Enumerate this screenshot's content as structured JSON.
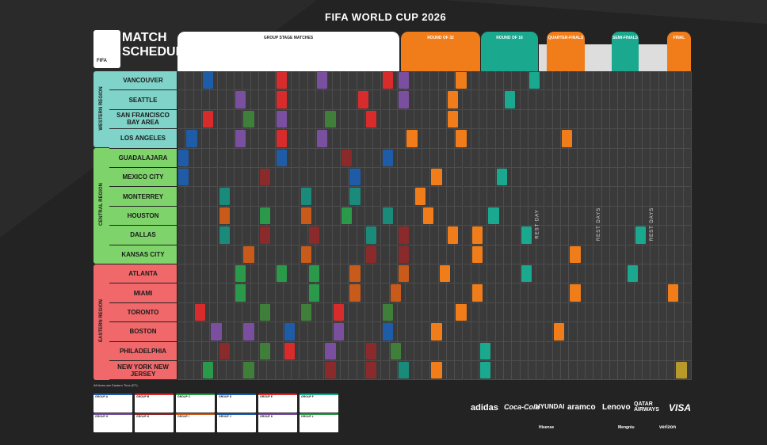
{
  "header": {
    "title": "FIFA WORLD CUP 2026"
  },
  "logo": {
    "line1": "MATCH",
    "line2": "SCHEDULE",
    "mark": "FIFA"
  },
  "phases": [
    {
      "label": "GROUP STAGE MATCHES",
      "color": "#ffffff",
      "text": "#222222"
    },
    {
      "label": "ROUND OF 32",
      "color": "#f07d1a",
      "text": "#ffffff"
    },
    {
      "label": "ROUND OF 16",
      "color": "#1aa88f",
      "text": "#ffffff"
    },
    {
      "label": "QUARTER-FINALS",
      "color": "#f07d1a",
      "text": "#ffffff"
    },
    {
      "label": "SEMI-FINALS",
      "color": "#1aa88f",
      "text": "#ffffff"
    },
    {
      "label": "FINAL",
      "color": "#f07d1a",
      "text": "#ffffff"
    }
  ],
  "regions": [
    {
      "label": "WESTERN REGION",
      "color": "#7fd3c8"
    },
    {
      "label": "CENTRAL REGION",
      "color": "#7ed36a"
    },
    {
      "label": "EASTERN REGION",
      "color": "#f0686a"
    }
  ],
  "cities": [
    "VANCOUVER",
    "SEATTLE",
    "SAN FRANCISCO BAY AREA",
    "LOS ANGELES",
    "GUADALAJARA",
    "MEXICO CITY",
    "MONTERREY",
    "HOUSTON",
    "DALLAS",
    "KANSAS CITY",
    "ATLANTA",
    "MIAMI",
    "TORONTO",
    "BOSTON",
    "PHILADELPHIA",
    "NEW YORK NEW JERSEY"
  ],
  "rest_day_label": "REST DAY",
  "rest_days_label": "REST DAYS",
  "note": "All times are Eastern Time (ET).",
  "groups": [
    {
      "name": "GROUP A"
    },
    {
      "name": "GROUP B"
    },
    {
      "name": "GROUP C"
    },
    {
      "name": "GROUP D"
    },
    {
      "name": "GROUP E"
    },
    {
      "name": "GROUP F"
    },
    {
      "name": "GROUP G"
    },
    {
      "name": "GROUP H"
    },
    {
      "name": "GROUP I"
    },
    {
      "name": "GROUP J"
    },
    {
      "name": "GROUP K"
    },
    {
      "name": "GROUP L"
    }
  ],
  "sponsors": {
    "row1": [
      "adidas",
      "Coca-Cola",
      "HYUNDAI",
      "aramco",
      "Lenovo",
      "QATAR AIRWAYS",
      "VISA"
    ],
    "row2": [
      "Hisense",
      "Mengniu",
      "verizon"
    ]
  },
  "colors": {
    "groupA": "#1f5ca8",
    "groupB": "#d82c2c",
    "groupC": "#7b4fa0",
    "groupD": "#3f7f3a",
    "groupE": "#8a2a2a",
    "groupF": "#1a8a7a",
    "groupG": "#c85a1a",
    "groupH": "#2a9a4a",
    "knockout_orange": "#f07d1a",
    "knockout_teal": "#1aa88f",
    "final_gold": "#b89a2a"
  }
}
